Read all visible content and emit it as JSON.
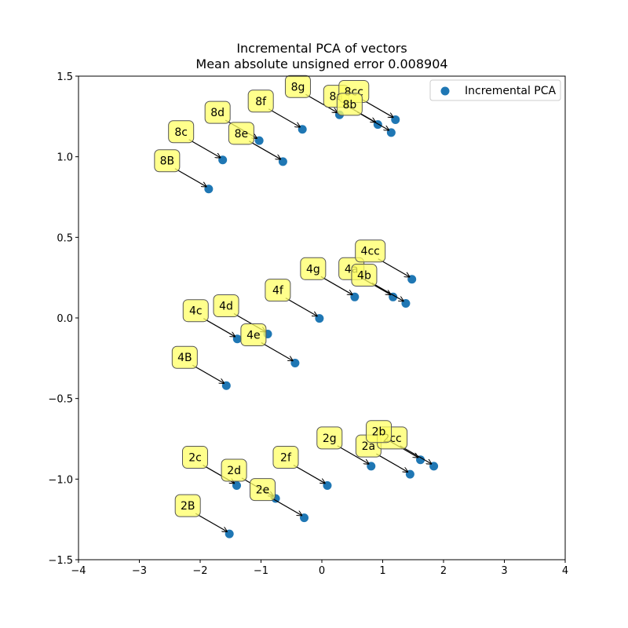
{
  "chart_data": {
    "type": "scatter",
    "title": [
      "Incremental PCA of vectors",
      "Mean absolute unsigned error 0.008904"
    ],
    "xlabel": "",
    "ylabel": "",
    "xlim": [
      -4,
      4
    ],
    "ylim": [
      -1.5,
      1.5
    ],
    "xticks": [
      -4,
      -3,
      -2,
      -1,
      0,
      1,
      2,
      3,
      4
    ],
    "yticks": [
      -1.5,
      -1.0,
      -0.5,
      0.0,
      0.5,
      1.0,
      1.5
    ],
    "xtick_labels": [
      "−4",
      "−3",
      "−2",
      "−1",
      "0",
      "1",
      "2",
      "3",
      "4"
    ],
    "ytick_labels": [
      "−1.5",
      "−1.0",
      "−0.5",
      "0.0",
      "0.5",
      "1.0",
      "1.5"
    ],
    "grid": false,
    "legend": {
      "position": "upper right",
      "entries": [
        "Incremental PCA"
      ]
    },
    "colors": {
      "points": "#1f77b4",
      "label_box": "#ffff66",
      "label_border": "#555555",
      "arrow": "#000000"
    },
    "points": [
      {
        "label": "8B",
        "x": -1.86,
        "y": 0.8
      },
      {
        "label": "8c",
        "x": -1.63,
        "y": 0.98
      },
      {
        "label": "8d",
        "x": -1.03,
        "y": 1.1
      },
      {
        "label": "8e",
        "x": -0.64,
        "y": 0.97
      },
      {
        "label": "8f",
        "x": -0.32,
        "y": 1.17
      },
      {
        "label": "8g",
        "x": 0.29,
        "y": 1.26
      },
      {
        "label": "8a",
        "x": 0.92,
        "y": 1.2
      },
      {
        "label": "8cc",
        "x": 1.21,
        "y": 1.23
      },
      {
        "label": "8b",
        "x": 1.14,
        "y": 1.15
      },
      {
        "label": "4B",
        "x": -1.57,
        "y": -0.42
      },
      {
        "label": "4c",
        "x": -1.39,
        "y": -0.13
      },
      {
        "label": "4d",
        "x": -0.89,
        "y": -0.1
      },
      {
        "label": "4e",
        "x": -0.44,
        "y": -0.28
      },
      {
        "label": "4f",
        "x": -0.04,
        "y": -0.003
      },
      {
        "label": "4g",
        "x": 0.54,
        "y": 0.13
      },
      {
        "label": "4a",
        "x": 1.17,
        "y": 0.13
      },
      {
        "label": "4cc",
        "x": 1.48,
        "y": 0.24
      },
      {
        "label": "4b",
        "x": 1.38,
        "y": 0.09
      },
      {
        "label": "2B",
        "x": -1.52,
        "y": -1.34
      },
      {
        "label": "2c",
        "x": -1.4,
        "y": -1.04
      },
      {
        "label": "2d",
        "x": -0.76,
        "y": -1.12
      },
      {
        "label": "2e",
        "x": -0.29,
        "y": -1.24
      },
      {
        "label": "2f",
        "x": 0.09,
        "y": -1.04
      },
      {
        "label": "2g",
        "x": 0.81,
        "y": -0.92
      },
      {
        "label": "2a",
        "x": 1.45,
        "y": -0.97
      },
      {
        "label": "2cc",
        "x": 1.84,
        "y": -0.92
      },
      {
        "label": "2b",
        "x": 1.62,
        "y": -0.88
      }
    ]
  }
}
